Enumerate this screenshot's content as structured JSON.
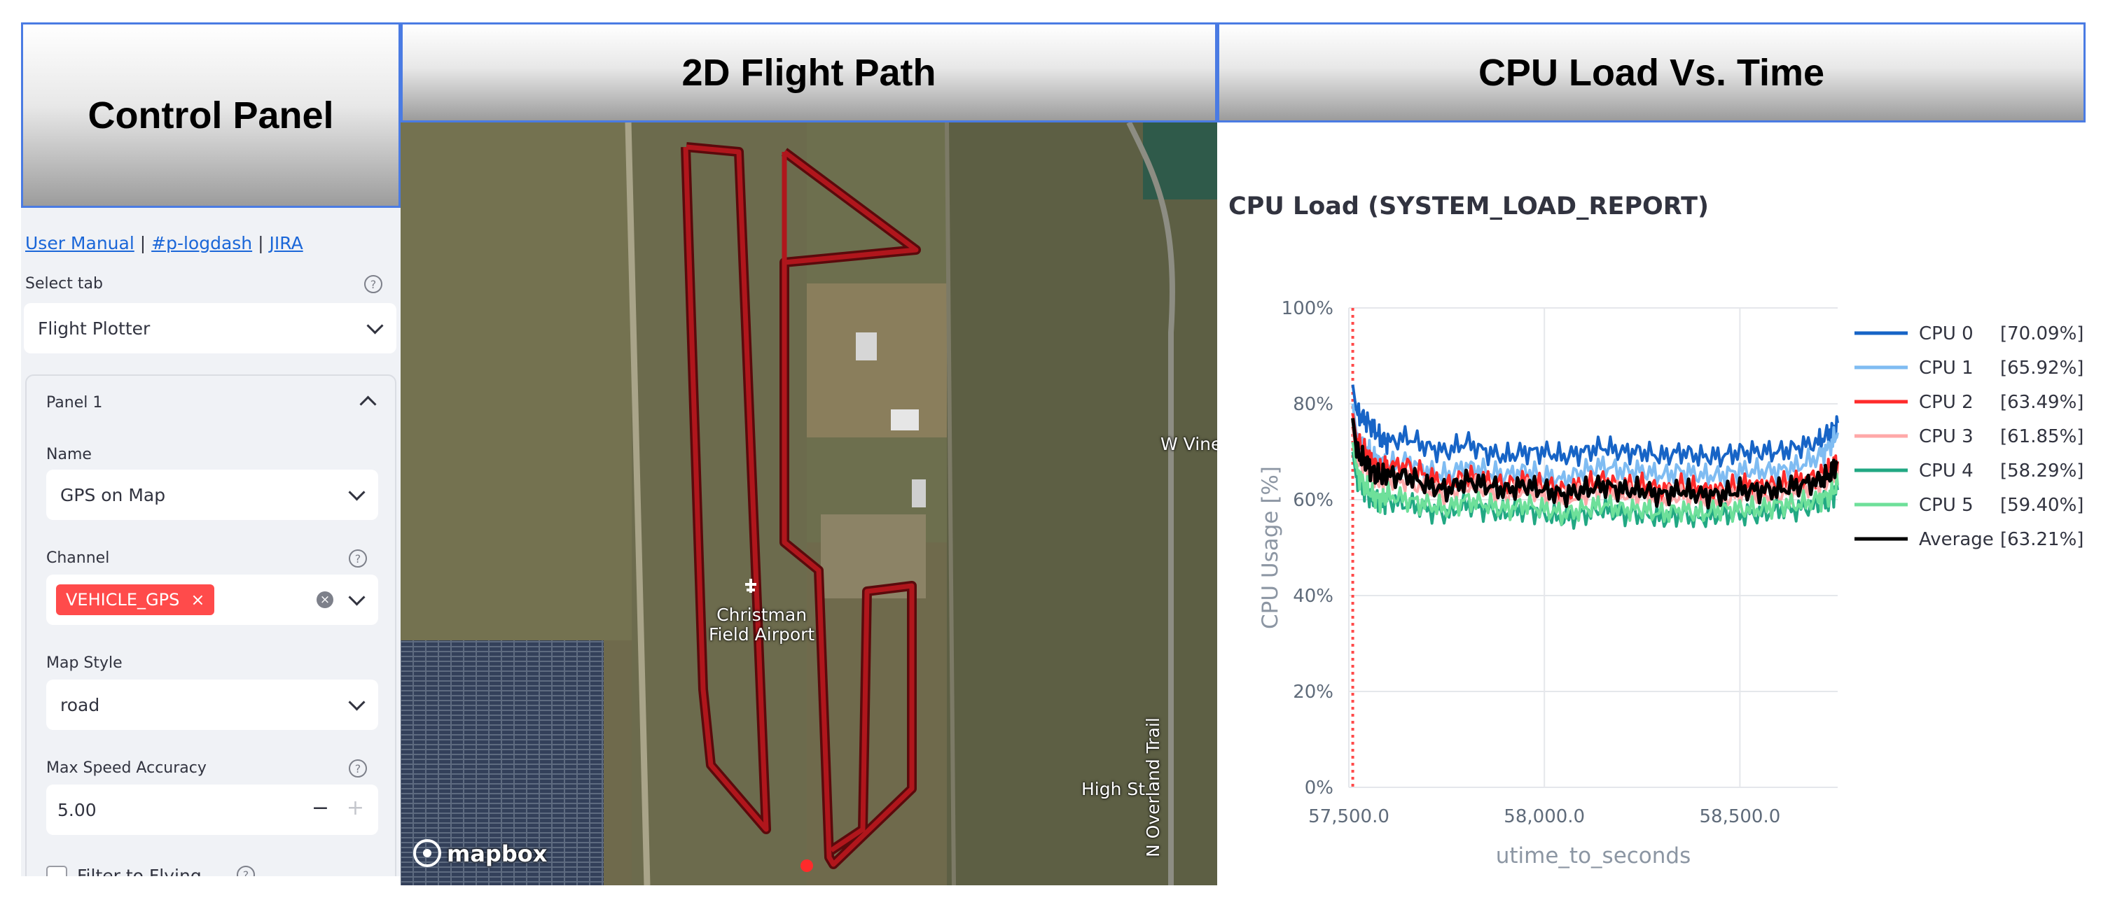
{
  "headers": {
    "control": "Control Panel",
    "flight": "2D Flight Path",
    "cpu": "CPU Load Vs. Time"
  },
  "links": {
    "manual": "User Manual",
    "sep1": "|",
    "channel": "#p-logdash",
    "sep2": "|",
    "jira": "JIRA"
  },
  "control": {
    "select_tab_label": "Select tab",
    "select_tab_value": "Flight Plotter",
    "panel_title": "Panel 1",
    "name_label": "Name",
    "name_value": "GPS on Map",
    "channel_label": "Channel",
    "channel_tag": "VEHICLE_GPS",
    "map_style_label": "Map Style",
    "map_style_value": "road",
    "max_speed_label": "Max Speed Accuracy",
    "max_speed_value": "5.00",
    "minus": "−",
    "plus": "+",
    "filter_label": "Filter to Flying"
  },
  "map": {
    "labels": {
      "airport": "Christman\nField Airport",
      "vine": "W Vine",
      "overland": "N Overland Trail",
      "high": "High St"
    },
    "attribution": "mapbox",
    "colors": {
      "path": "#b0161c",
      "path_outline": "#5a0a0c"
    }
  },
  "chart_data": {
    "type": "line",
    "title": "CPU Load (SYSTEM_LOAD_REPORT)",
    "xlabel": "utime_to_seconds",
    "ylabel": "CPU Usage [%]",
    "xlim": [
      57500,
      58750
    ],
    "ylim": [
      0,
      100
    ],
    "xticks": [
      57500,
      58000,
      58500
    ],
    "xtick_labels": [
      "57,500.0",
      "58,000.0",
      "58,500.0"
    ],
    "yticks": [
      0,
      20,
      40,
      60,
      80,
      100
    ],
    "ytick_labels": [
      "0%",
      "20%",
      "40%",
      "60%",
      "80%",
      "100%"
    ],
    "grid": true,
    "legend_position": "right",
    "marker_line": {
      "x": 57510,
      "color": "#ff4b4b",
      "style": "dotted"
    },
    "x": [
      57510,
      57520,
      57540,
      57560,
      57580,
      57600,
      57650,
      57700,
      57750,
      57800,
      57850,
      57900,
      57950,
      58000,
      58050,
      58100,
      58150,
      58200,
      58250,
      58300,
      58350,
      58400,
      58450,
      58500,
      58550,
      58600,
      58650,
      58700,
      58730,
      58750
    ],
    "series": [
      {
        "name": "CPU 0",
        "value_label": "[70.09%]",
        "color": "#1764c6",
        "values": [
          84,
          78,
          77,
          75,
          73,
          72,
          73,
          71,
          70,
          72,
          70,
          69,
          70,
          70,
          69,
          70,
          71,
          70,
          70,
          69,
          70,
          69,
          69,
          70,
          70,
          70,
          71,
          72,
          74,
          76
        ]
      },
      {
        "name": "CPU 1",
        "value_label": "[65.92%]",
        "color": "#7fbcf2",
        "values": [
          80,
          73,
          71,
          69,
          68,
          67,
          68,
          66,
          65,
          67,
          66,
          65,
          66,
          65,
          64,
          66,
          67,
          66,
          66,
          65,
          66,
          65,
          65,
          66,
          66,
          66,
          67,
          69,
          71,
          74
        ]
      },
      {
        "name": "CPU 2",
        "value_label": "[63.49%]",
        "color": "#ff2b2b",
        "values": [
          78,
          72,
          70,
          68,
          66,
          67,
          67,
          65,
          63,
          65,
          64,
          63,
          64,
          63,
          62,
          63,
          64,
          63,
          63,
          62,
          63,
          62,
          62,
          63,
          63,
          63,
          64,
          65,
          66,
          68
        ]
      },
      {
        "name": "CPU 3",
        "value_label": "[61.85%]",
        "color": "#ffa8a8",
        "values": [
          75,
          69,
          67,
          65,
          64,
          64,
          64,
          62,
          61,
          63,
          62,
          61,
          62,
          61,
          60,
          61,
          62,
          61,
          61,
          60,
          61,
          60,
          60,
          61,
          61,
          61,
          62,
          63,
          64,
          66
        ]
      },
      {
        "name": "CPU 4",
        "value_label": "[58.29%]",
        "color": "#21a883",
        "values": [
          70,
          64,
          62,
          60,
          59,
          60,
          59,
          58,
          57,
          59,
          58,
          57,
          58,
          57,
          56,
          57,
          58,
          57,
          57,
          56,
          57,
          56,
          57,
          57,
          57,
          58,
          58,
          59,
          60,
          62
        ]
      },
      {
        "name": "CPU 5",
        "value_label": "[59.40%]",
        "color": "#6ee09a",
        "values": [
          72,
          66,
          63,
          61,
          60,
          61,
          60,
          59,
          58,
          60,
          59,
          58,
          59,
          58,
          57,
          58,
          59,
          58,
          58,
          57,
          58,
          57,
          58,
          58,
          58,
          59,
          59,
          60,
          61,
          63
        ]
      },
      {
        "name": "Average",
        "value_label": "[63.21%]",
        "color": "#000000",
        "values": [
          77,
          70,
          68,
          66,
          65,
          65,
          65,
          63,
          62,
          64,
          63,
          62,
          63,
          62,
          61,
          62,
          63,
          62,
          62,
          61,
          62,
          61,
          61,
          62,
          62,
          62,
          63,
          64,
          65,
          68
        ]
      }
    ]
  }
}
